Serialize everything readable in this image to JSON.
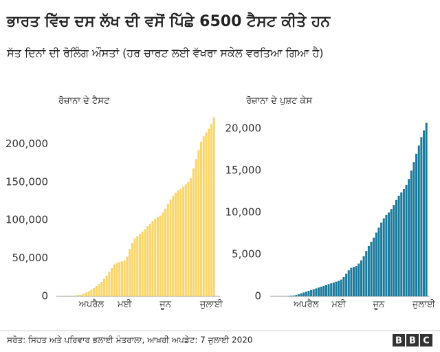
{
  "header": {
    "title": "ਭਾਰਤ ਵਿੱਚ ਦਸ ਲੱਖ ਦੀ ਵਸੋਂ ਪਿੱਛੇ 6500 ਟੈਸਟ ਕੀਤੇ ਹਨ",
    "subtitle": "ਸੱਤ ਦਿਨਾਂ ਦੀ ਰੋਲਿੰਗ ਔਸਤਾਂ (ਹਰ ਚਾਰਟ ਲਈ ਵੱਖਰਾ ਸਕੇਲ ਵਰਤਿਆ ਗਿਆ ਹੈ)"
  },
  "footer": {
    "source": "ਸਰੋਤ: ਸਿਹਤ ਅਤੇ ਪਰਿਵਾਰ ਭਲਾਈ ਮੰਤਰਾਲਾ, ਆਖ਼ਰੀ ਅਪਡੇਟ: 7 ਜੁਲਾਈ 2020",
    "logo": [
      "B",
      "B",
      "C"
    ]
  },
  "chart_data": [
    {
      "type": "bar",
      "title": "ਰੋਜ਼ਾਨਾ ਦੇ ਟੈਸਟ",
      "color": "#f9d66c",
      "grid": false,
      "categories": [
        null,
        null,
        null,
        null,
        null,
        null,
        null,
        "ਅਪਰੈਲ",
        null,
        null,
        null,
        null,
        null,
        null,
        null,
        null,
        null,
        null,
        null,
        null,
        "ਮਈ",
        null,
        null,
        null,
        null,
        null,
        null,
        null,
        null,
        null,
        null,
        null,
        null,
        null,
        null,
        null,
        "ਜੂਨ",
        null,
        null,
        null,
        null,
        null,
        null,
        null,
        null,
        null,
        null,
        null,
        null,
        null,
        null,
        null,
        null,
        null,
        "ਜੁਲਾਈ",
        null
      ],
      "values": [
        0,
        1500,
        1800,
        2000,
        3500,
        5000,
        7000,
        9000,
        11000,
        13500,
        16000,
        19000,
        23000,
        27000,
        32000,
        37000,
        42000,
        44000,
        45000,
        46000,
        47000,
        52000,
        62000,
        70000,
        76000,
        79000,
        82000,
        85000,
        88000,
        92000,
        95000,
        99000,
        102000,
        104000,
        106000,
        110000,
        115000,
        121000,
        127000,
        132000,
        136000,
        139000,
        141000,
        144000,
        147000,
        150000,
        155000,
        168000,
        180000,
        192000,
        203000,
        210000,
        215000,
        220000,
        226000,
        235000
      ],
      "ylim": [
        0,
        240000
      ],
      "yticks": [
        0,
        {
          "value": 50000,
          "label": "50,000"
        },
        {
          "value": 100000,
          "label": "100,000"
        },
        {
          "value": 150000,
          "label": "150,000"
        },
        {
          "value": 200000,
          "label": "200,000"
        }
      ]
    },
    {
      "type": "bar",
      "title": "ਰੋਜ਼ਾਨਾ ਦੇ ਪੁਸ਼ਟ ਕੇਸ",
      "color": "#1b7b9d",
      "grid": false,
      "categories": [
        null,
        null,
        null,
        null,
        null,
        null,
        null,
        "ਅਪਰੈਲ",
        null,
        null,
        null,
        null,
        null,
        null,
        null,
        null,
        null,
        null,
        null,
        null,
        "ਮਈ",
        null,
        null,
        null,
        null,
        null,
        null,
        null,
        null,
        null,
        null,
        null,
        null,
        null,
        null,
        null,
        "ਜੂਨ",
        null,
        null,
        null,
        null,
        null,
        null,
        null,
        null,
        null,
        null,
        null,
        null,
        null,
        null,
        null,
        null,
        null,
        "ਜੁਲਾਈ",
        null
      ],
      "values": [
        50,
        80,
        100,
        150,
        250,
        350,
        450,
        550,
        650,
        750,
        850,
        950,
        1050,
        1150,
        1250,
        1350,
        1450,
        1550,
        1650,
        1750,
        1850,
        2000,
        2300,
        2700,
        3100,
        3400,
        3500,
        3600,
        3900,
        4300,
        4800,
        5400,
        6000,
        6500,
        7000,
        7600,
        8200,
        8800,
        9300,
        9700,
        10000,
        10400,
        10900,
        11500,
        12000,
        12400,
        12800,
        13300,
        14000,
        15000,
        16000,
        17000,
        18000,
        19000,
        19800,
        20700
      ],
      "ylim": [
        0,
        21000
      ],
      "yticks": [
        0,
        {
          "value": 5000,
          "label": "5,000"
        },
        {
          "value": 10000,
          "label": "10,000"
        },
        {
          "value": 15000,
          "label": "15,000"
        },
        {
          "value": 20000,
          "label": "20,000"
        }
      ]
    }
  ]
}
